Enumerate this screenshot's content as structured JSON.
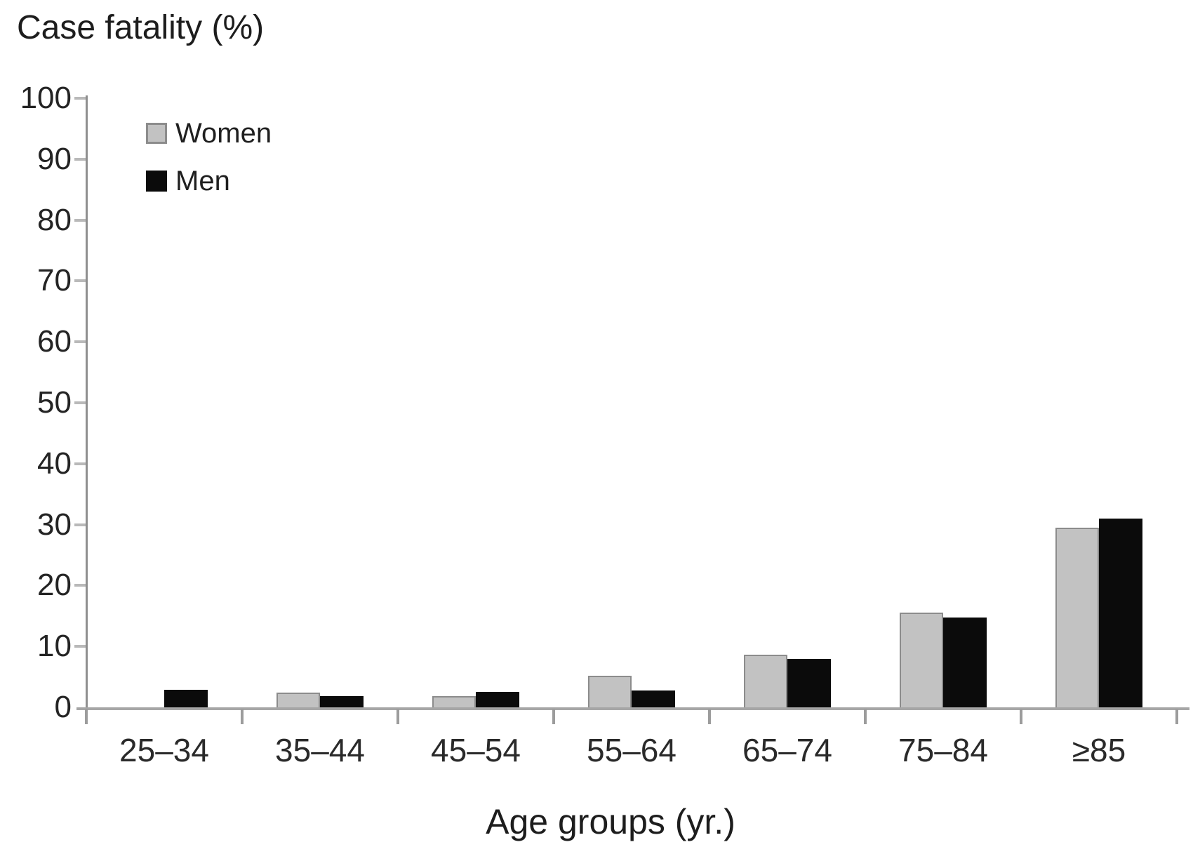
{
  "title": "Case fatality (%)",
  "legend": {
    "women_label": "Women",
    "men_label": "Men"
  },
  "chart_data": {
    "type": "bar",
    "title": "Case fatality (%)",
    "ylabel": "Case fatality (%)",
    "xlabel": "Age groups (yr.)",
    "categories": [
      "25–34",
      "35–44",
      "45–54",
      "55–64",
      "65–74",
      "75–84",
      "≥85"
    ],
    "series": [
      {
        "name": "Women",
        "color": "#c2c2c2",
        "border_color": "#8c8c8c",
        "values": [
          0,
          2.4,
          1.9,
          5.2,
          8.6,
          15.6,
          29.5
        ]
      },
      {
        "name": "Men",
        "color": "#0b0b0b",
        "border_color": "#0b0b0b",
        "values": [
          2.9,
          1.8,
          2.5,
          2.8,
          8,
          14.8,
          31
        ]
      }
    ],
    "ylim": [
      0,
      100
    ],
    "y_ticks": [
      0,
      10,
      20,
      30,
      40,
      50,
      60,
      70,
      80,
      90,
      100
    ],
    "grid": false,
    "legend_position": "upper-left-inside"
  },
  "colors": {
    "background": "#ffffff",
    "axis_line": "#8f8f8f",
    "baseline": "#a6a6a6",
    "tick": "#9c9c9c",
    "text": "#1f1f1f"
  }
}
